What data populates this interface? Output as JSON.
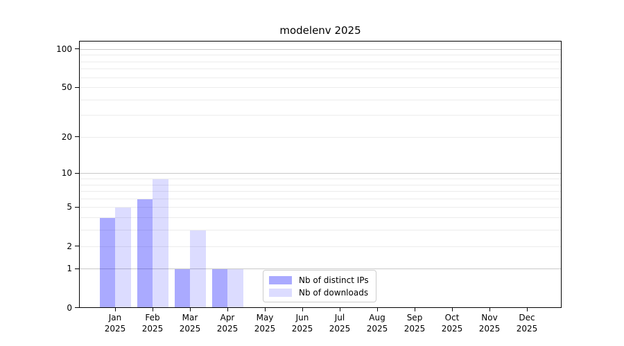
{
  "title": "modelenv 2025",
  "chart_data": {
    "type": "bar",
    "title": "modelenv 2025",
    "categories": [
      "Jan 2025",
      "Feb 2025",
      "Mar 2025",
      "Apr 2025",
      "May 2025",
      "Jun 2025",
      "Jul 2025",
      "Aug 2025",
      "Sep 2025",
      "Oct 2025",
      "Nov 2025",
      "Dec 2025"
    ],
    "category_months": [
      "Jan",
      "Feb",
      "Mar",
      "Apr",
      "May",
      "Jun",
      "Jul",
      "Aug",
      "Sep",
      "Oct",
      "Nov",
      "Dec"
    ],
    "category_year": "2025",
    "series": [
      {
        "name": "Nb of distinct IPs",
        "color": "#aaaaff",
        "rgba": "rgba(0,0,255,0.335)",
        "values": [
          4,
          6,
          1,
          1,
          0,
          0,
          0,
          0,
          0,
          0,
          0,
          0
        ]
      },
      {
        "name": "Nb of downloads",
        "color": "#ddddff",
        "rgba": "rgba(0,0,255,0.137)",
        "values": [
          5,
          9,
          3,
          1,
          0,
          0,
          0,
          0,
          0,
          0,
          0,
          0
        ]
      }
    ],
    "xlabel": "",
    "ylabel": "",
    "yscale": "log1p",
    "ylim": [
      0,
      115
    ],
    "y_tick_values": [
      0,
      1,
      2,
      5,
      10,
      20,
      50,
      100
    ],
    "y_tick_labels": [
      "0",
      "1",
      "2",
      "5",
      "10",
      "20",
      "50",
      "100"
    ],
    "grid": true,
    "gridline_values_minor": [
      2,
      3,
      4,
      5,
      6,
      7,
      8,
      9,
      20,
      30,
      40,
      50,
      60,
      70,
      80,
      90
    ],
    "gridline_values_major": [
      1,
      10,
      100
    ],
    "grid_color_minor": "#ececec",
    "grid_color_major": "#c9c9c9",
    "legend_position": "lower center",
    "legend_labels": [
      "Nb of distinct IPs",
      "Nb of downloads"
    ]
  }
}
